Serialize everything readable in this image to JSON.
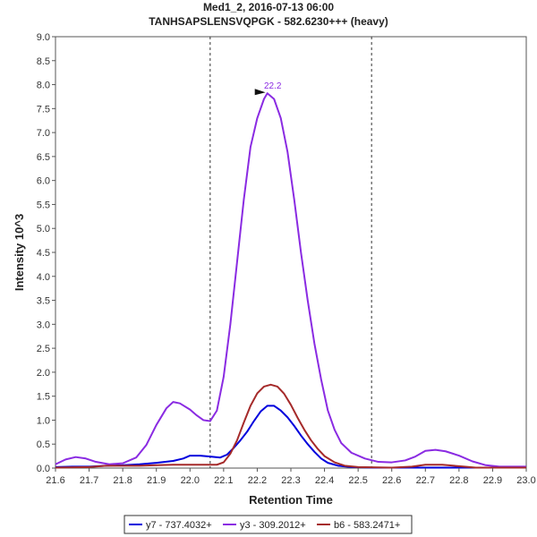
{
  "chart_data": {
    "type": "line",
    "title": "Med1_2, 2016-07-13 06:00",
    "subtitle": "TANHSAPSLENSVQPGK - 582.6230+++ (heavy)",
    "xlabel": "Retention Time",
    "ylabel": "Intensity 10^3",
    "xlim": [
      21.6,
      23.0
    ],
    "ylim": [
      0,
      9.0
    ],
    "xticks": [
      "21.6",
      "21.7",
      "21.8",
      "21.9",
      "22.0",
      "22.1",
      "22.2",
      "22.3",
      "22.4",
      "22.5",
      "22.6",
      "22.7",
      "22.8",
      "22.9",
      "23.0"
    ],
    "yticks": [
      "0.0",
      "0.5",
      "1.0",
      "1.5",
      "2.0",
      "2.5",
      "3.0",
      "3.5",
      "4.0",
      "4.5",
      "5.0",
      "5.5",
      "6.0",
      "6.5",
      "7.0",
      "7.5",
      "8.0",
      "8.5",
      "9.0"
    ],
    "grid": false,
    "legend_position": "bottom",
    "boundaries": [
      22.06,
      22.54
    ],
    "peak_annotation": {
      "x": 22.23,
      "y": 7.82,
      "label": "22.2"
    },
    "series": [
      {
        "name": "y7 - 737.4032+",
        "color": "#0000dd",
        "points": [
          [
            21.6,
            0.02
          ],
          [
            21.65,
            0.03
          ],
          [
            21.7,
            0.03
          ],
          [
            21.75,
            0.05
          ],
          [
            21.8,
            0.06
          ],
          [
            21.85,
            0.08
          ],
          [
            21.9,
            0.11
          ],
          [
            21.95,
            0.15
          ],
          [
            21.98,
            0.2
          ],
          [
            22.0,
            0.26
          ],
          [
            22.03,
            0.26
          ],
          [
            22.06,
            0.24
          ],
          [
            22.09,
            0.22
          ],
          [
            22.11,
            0.28
          ],
          [
            22.13,
            0.42
          ],
          [
            22.15,
            0.58
          ],
          [
            22.17,
            0.76
          ],
          [
            22.19,
            0.98
          ],
          [
            22.21,
            1.18
          ],
          [
            22.23,
            1.3
          ],
          [
            22.25,
            1.3
          ],
          [
            22.27,
            1.2
          ],
          [
            22.29,
            1.06
          ],
          [
            22.31,
            0.88
          ],
          [
            22.33,
            0.68
          ],
          [
            22.35,
            0.5
          ],
          [
            22.37,
            0.34
          ],
          [
            22.39,
            0.2
          ],
          [
            22.41,
            0.11
          ],
          [
            22.44,
            0.05
          ],
          [
            22.48,
            0.02
          ],
          [
            22.55,
            0.01
          ],
          [
            22.65,
            0.01
          ],
          [
            22.75,
            0.01
          ],
          [
            22.85,
            0.01
          ],
          [
            22.95,
            0.01
          ],
          [
            23.0,
            0.01
          ]
        ]
      },
      {
        "name": "y3 - 309.2012+",
        "color": "#8a2be2",
        "points": [
          [
            21.6,
            0.08
          ],
          [
            21.63,
            0.18
          ],
          [
            21.66,
            0.23
          ],
          [
            21.69,
            0.2
          ],
          [
            21.72,
            0.13
          ],
          [
            21.76,
            0.08
          ],
          [
            21.8,
            0.1
          ],
          [
            21.84,
            0.22
          ],
          [
            21.87,
            0.48
          ],
          [
            21.9,
            0.9
          ],
          [
            21.93,
            1.25
          ],
          [
            21.95,
            1.38
          ],
          [
            21.97,
            1.35
          ],
          [
            22.0,
            1.22
          ],
          [
            22.02,
            1.1
          ],
          [
            22.04,
            1.0
          ],
          [
            22.06,
            0.98
          ],
          [
            22.08,
            1.2
          ],
          [
            22.1,
            1.9
          ],
          [
            22.12,
            3.0
          ],
          [
            22.14,
            4.3
          ],
          [
            22.16,
            5.6
          ],
          [
            22.18,
            6.7
          ],
          [
            22.2,
            7.3
          ],
          [
            22.22,
            7.7
          ],
          [
            22.23,
            7.82
          ],
          [
            22.25,
            7.7
          ],
          [
            22.27,
            7.3
          ],
          [
            22.29,
            6.6
          ],
          [
            22.31,
            5.6
          ],
          [
            22.33,
            4.5
          ],
          [
            22.35,
            3.5
          ],
          [
            22.37,
            2.6
          ],
          [
            22.39,
            1.85
          ],
          [
            22.41,
            1.2
          ],
          [
            22.43,
            0.8
          ],
          [
            22.45,
            0.52
          ],
          [
            22.48,
            0.32
          ],
          [
            22.52,
            0.2
          ],
          [
            22.56,
            0.13
          ],
          [
            22.6,
            0.12
          ],
          [
            22.64,
            0.16
          ],
          [
            22.67,
            0.24
          ],
          [
            22.7,
            0.36
          ],
          [
            22.73,
            0.38
          ],
          [
            22.76,
            0.35
          ],
          [
            22.8,
            0.26
          ],
          [
            22.84,
            0.14
          ],
          [
            22.88,
            0.06
          ],
          [
            22.92,
            0.03
          ],
          [
            23.0,
            0.03
          ]
        ]
      },
      {
        "name": "b6 - 583.2471+",
        "color": "#a52a2a",
        "points": [
          [
            21.6,
            0.01
          ],
          [
            21.7,
            0.02
          ],
          [
            21.75,
            0.05
          ],
          [
            21.8,
            0.05
          ],
          [
            21.85,
            0.05
          ],
          [
            21.9,
            0.06
          ],
          [
            21.95,
            0.07
          ],
          [
            22.0,
            0.07
          ],
          [
            22.05,
            0.07
          ],
          [
            22.08,
            0.07
          ],
          [
            22.1,
            0.12
          ],
          [
            22.12,
            0.3
          ],
          [
            22.14,
            0.58
          ],
          [
            22.16,
            0.95
          ],
          [
            22.18,
            1.3
          ],
          [
            22.2,
            1.56
          ],
          [
            22.22,
            1.7
          ],
          [
            22.24,
            1.74
          ],
          [
            22.26,
            1.7
          ],
          [
            22.28,
            1.55
          ],
          [
            22.3,
            1.32
          ],
          [
            22.32,
            1.05
          ],
          [
            22.34,
            0.8
          ],
          [
            22.36,
            0.58
          ],
          [
            22.38,
            0.4
          ],
          [
            22.4,
            0.25
          ],
          [
            22.43,
            0.12
          ],
          [
            22.46,
            0.05
          ],
          [
            22.5,
            0.02
          ],
          [
            22.6,
            0.01
          ],
          [
            22.66,
            0.03
          ],
          [
            22.7,
            0.07
          ],
          [
            22.75,
            0.07
          ],
          [
            22.8,
            0.04
          ],
          [
            22.85,
            0.01
          ],
          [
            23.0,
            0.01
          ]
        ]
      }
    ]
  }
}
